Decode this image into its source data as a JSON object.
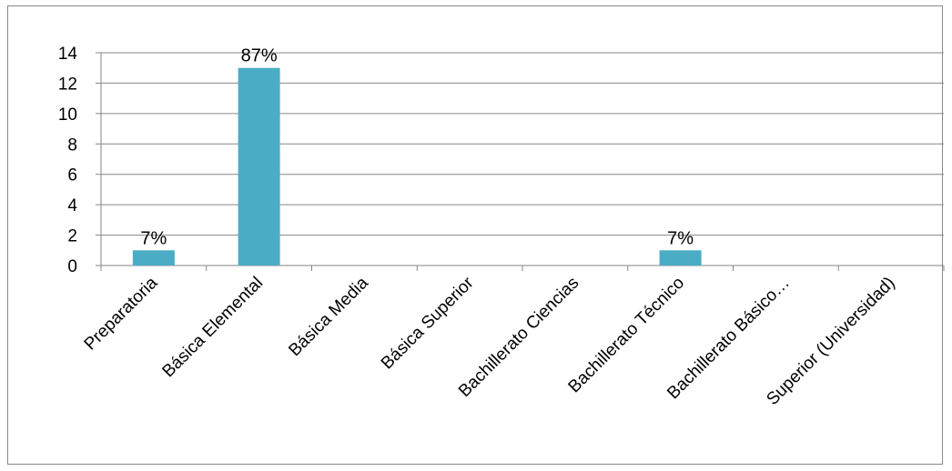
{
  "chart_data": {
    "type": "bar",
    "categories": [
      "Preparatoria",
      "Básica Elemental",
      "Básica Media",
      "Básica Superior",
      "Bachillerato Ciencias",
      "Bachillerato Técnico",
      "Bachillerato Básico…",
      "Superior (Universidad)"
    ],
    "values": [
      1,
      13,
      0,
      0,
      0,
      1,
      0,
      0
    ],
    "data_labels": [
      "7%",
      "87%",
      "",
      "",
      "",
      "7%",
      "",
      ""
    ],
    "ylim": [
      0,
      14
    ],
    "yticks": [
      0,
      2,
      4,
      6,
      8,
      10,
      12,
      14
    ],
    "grid": true,
    "legend": "none",
    "bar_color": "#4BACC6",
    "grid_color": "#868686"
  }
}
